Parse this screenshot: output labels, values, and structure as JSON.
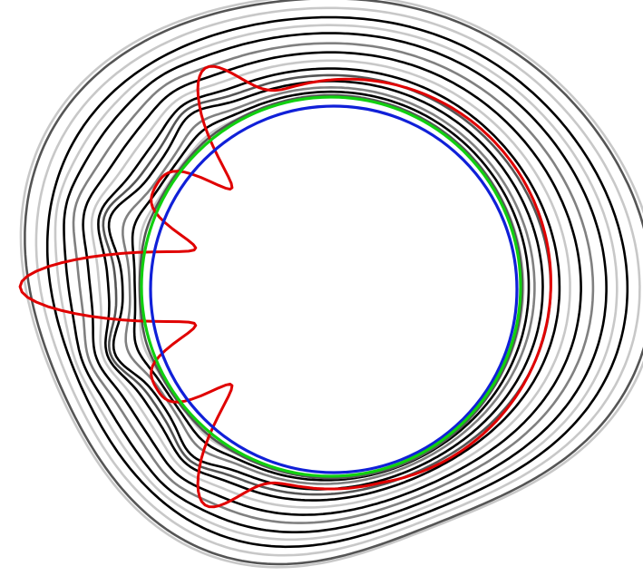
{
  "figure": {
    "kind": "nested closed contour curves",
    "background": "#ffffff"
  },
  "palette": {
    "black": "#000000",
    "dark_gray": "#555555",
    "mid_gray": "#808080",
    "light_gray": "#c8c8c8",
    "red": "#e00000",
    "green": "#10d010",
    "blue": "#1020d8"
  },
  "curves": [
    {
      "name": "outer-contour-1",
      "color": "light_gray",
      "scale": 1.0,
      "deform": 1.0,
      "lobes": 0.0
    },
    {
      "name": "outer-contour-2",
      "color": "dark_gray",
      "scale": 0.985,
      "deform": 1.0,
      "lobes": 0.0
    },
    {
      "name": "outer-contour-3",
      "color": "light_gray",
      "scale": 0.955,
      "deform": 0.92,
      "lobes": 0.0
    },
    {
      "name": "outer-contour-4",
      "color": "black",
      "scale": 0.93,
      "deform": 0.85,
      "lobes": 0.0
    },
    {
      "name": "outer-contour-5",
      "color": "light_gray",
      "scale": 0.895,
      "deform": 0.8,
      "lobes": 0.1
    },
    {
      "name": "outer-contour-6",
      "color": "black",
      "scale": 0.865,
      "deform": 0.74,
      "lobes": 0.15
    },
    {
      "name": "mid-contour-1",
      "color": "mid_gray",
      "scale": 0.825,
      "deform": 0.66,
      "lobes": 0.25
    },
    {
      "name": "mid-contour-2",
      "color": "black",
      "scale": 0.79,
      "deform": 0.58,
      "lobes": 0.3
    },
    {
      "name": "mid-contour-3",
      "color": "light_gray",
      "scale": 0.76,
      "deform": 0.5,
      "lobes": 0.35
    },
    {
      "name": "mid-contour-4",
      "color": "black",
      "scale": 0.725,
      "deform": 0.42,
      "lobes": 0.45
    },
    {
      "name": "mid-contour-5",
      "color": "dark_gray",
      "scale": 0.69,
      "deform": 0.35,
      "lobes": 0.55
    },
    {
      "name": "mid-contour-6",
      "color": "black",
      "scale": 0.66,
      "deform": 0.28,
      "lobes": 0.6
    },
    {
      "name": "inner-contour-1",
      "color": "mid_gray",
      "scale": 0.63,
      "deform": 0.2,
      "lobes": 0.4
    },
    {
      "name": "inner-contour-2",
      "color": "black",
      "scale": 0.605,
      "deform": 0.14,
      "lobes": 0.25
    },
    {
      "name": "inner-contour-3",
      "color": "light_gray",
      "scale": 0.585,
      "deform": 0.08,
      "lobes": 0.15
    },
    {
      "name": "inner-contour-4",
      "color": "dark_gray",
      "scale": 0.57,
      "deform": 0.04,
      "lobes": 0.05
    }
  ],
  "highlighted": [
    {
      "name": "red-lobed-contour",
      "color": "red"
    },
    {
      "name": "green-circle",
      "color": "green"
    },
    {
      "name": "blue-circle",
      "color": "blue"
    }
  ]
}
